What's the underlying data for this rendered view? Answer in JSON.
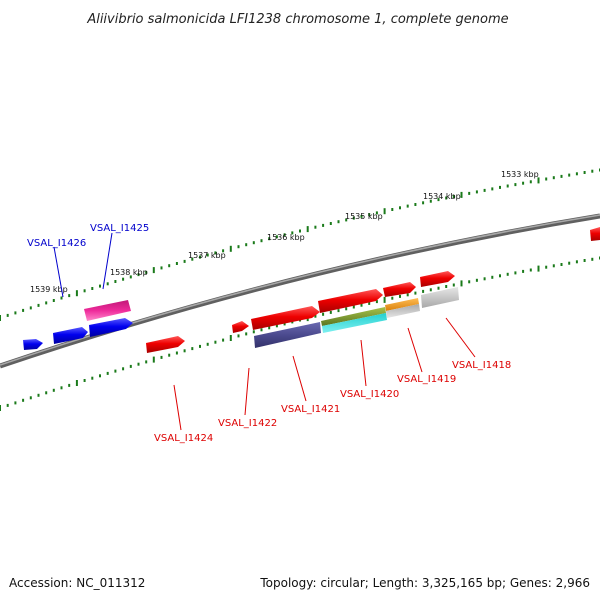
{
  "title": "Aliivibrio salmonicida LFI1238 chromosome 1, complete genome",
  "footer": {
    "accession": "Accession: NC_011312",
    "topology": "Topology: circular; Length: 3,325,165 bp; Genes: 2,966"
  },
  "ticks": [
    "1533 kbp",
    "1534 kbp",
    "1535 kbp",
    "1536 kbp",
    "1537 kbp",
    "1538 kbp",
    "1539 kbp"
  ],
  "gene_labels": {
    "VSAL_I1426": "VSAL_I1426",
    "VSAL_I1425": "VSAL_I1425",
    "VSAL_I1424": "VSAL_I1424",
    "VSAL_I1422": "VSAL_I1422",
    "VSAL_I1421": "VSAL_I1421",
    "VSAL_I1420": "VSAL_I1420",
    "VSAL_I1419": "VSAL_I1419",
    "VSAL_I1418": "VSAL_I1418"
  },
  "colors": {
    "backbone": "#808080",
    "tick": "#1a7a1a",
    "forward_gene": "#ee0000",
    "reverse_gene": "#0000ee",
    "rna_gene": "#ee2a9a",
    "label_forward": "#dd0000",
    "label_reverse": "#0000cc",
    "feature_purple": "#4b4a8e",
    "feature_olive": "#6f8f2a",
    "feature_cyan": "#22d0d0",
    "feature_orange": "#f39a14",
    "feature_gray": "#c2c2c2"
  }
}
